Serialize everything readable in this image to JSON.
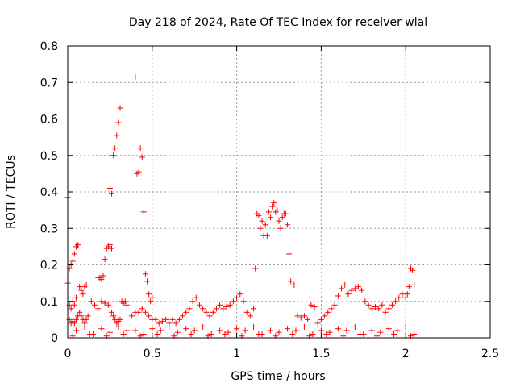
{
  "chart_data": {
    "type": "scatter",
    "title": "Day 218 of 2024, Rate Of TEC Index for receiver wlal",
    "xlabel": "GPS time / hours",
    "ylabel": "ROTI / TECUs",
    "xlim": [
      0,
      2.5
    ],
    "ylim": [
      0,
      0.8
    ],
    "xticks": [
      0,
      0.5,
      1,
      1.5,
      2,
      2.5
    ],
    "xtick_labels": [
      "0",
      "0.5",
      "1",
      "1.5",
      "2",
      "2.5"
    ],
    "yticks": [
      0,
      0.1,
      0.2,
      0.3,
      0.4,
      0.5,
      0.6,
      0.7,
      0.8
    ],
    "ytick_labels": [
      "0",
      "0.1",
      "0.2",
      "0.3",
      "0.4",
      "0.5",
      "0.6",
      "0.7",
      "0.8"
    ],
    "grid": true,
    "marker": "+",
    "marker_color": "#ff0000",
    "series": [
      {
        "x": [
          0.0,
          0.01,
          0.02,
          0.03,
          0.04,
          0.05,
          0.06,
          0.07,
          0.08,
          0.09,
          0.1,
          0.11,
          0.0,
          0.01,
          0.02,
          0.03,
          0.04,
          0.05,
          0.01,
          0.02,
          0.03,
          0.04,
          0.05,
          0.06,
          0.07,
          0.08,
          0.09,
          0.1,
          0.11,
          0.12,
          0.14,
          0.16,
          0.18,
          0.2,
          0.22,
          0.24,
          0.18,
          0.19,
          0.2,
          0.21,
          0.22,
          0.23,
          0.24,
          0.25,
          0.26,
          0.25,
          0.26,
          0.27,
          0.28,
          0.29,
          0.3,
          0.31,
          0.32,
          0.33,
          0.34,
          0.35,
          0.26,
          0.27,
          0.28,
          0.29,
          0.3,
          0.31,
          0.4,
          0.41,
          0.42,
          0.43,
          0.44,
          0.45,
          0.46,
          0.47,
          0.48,
          0.49,
          0.5,
          0.38,
          0.4,
          0.42,
          0.44,
          0.46,
          0.48,
          0.5,
          0.52,
          0.54,
          0.56,
          0.58,
          0.6,
          0.62,
          0.64,
          0.66,
          0.68,
          0.7,
          0.72,
          0.74,
          0.76,
          0.78,
          0.8,
          0.82,
          0.84,
          0.86,
          0.88,
          0.9,
          0.92,
          0.94,
          0.96,
          0.98,
          1.0,
          1.02,
          1.04,
          1.06,
          1.08,
          1.1,
          1.11,
          1.12,
          1.13,
          1.14,
          1.15,
          1.16,
          1.17,
          1.18,
          1.19,
          1.2,
          1.21,
          1.22,
          1.23,
          1.24,
          1.25,
          1.26,
          1.27,
          1.28,
          1.29,
          1.3,
          1.31,
          1.32,
          1.34,
          1.36,
          1.38,
          1.4,
          1.42,
          1.44,
          1.46,
          1.48,
          1.5,
          1.52,
          1.54,
          1.56,
          1.58,
          1.6,
          1.62,
          1.64,
          1.66,
          1.68,
          1.7,
          1.72,
          1.74,
          1.76,
          1.78,
          1.8,
          1.82,
          1.84,
          1.86,
          1.88,
          1.9,
          1.92,
          1.94,
          1.96,
          1.98,
          2.0,
          2.01,
          2.02,
          2.03,
          2.04,
          2.05,
          0.05,
          0.15,
          0.25,
          0.35,
          0.45,
          0.55,
          0.65,
          0.75,
          0.85,
          0.95,
          1.05,
          1.15,
          1.25,
          1.35,
          1.45,
          1.55,
          1.65,
          1.75,
          1.85,
          1.95,
          2.05,
          0.1,
          0.2,
          0.3,
          0.4,
          0.5,
          0.6,
          0.7,
          0.8,
          0.9,
          1.0,
          1.1,
          1.2,
          1.3,
          1.4,
          1.5,
          1.6,
          1.7,
          1.8,
          1.9,
          2.0,
          0.03,
          0.13,
          0.23,
          0.33,
          0.43,
          0.53,
          0.63,
          0.73,
          0.83,
          0.93,
          1.03,
          1.13,
          1.23,
          1.33,
          1.43,
          1.53,
          1.63,
          1.73,
          1.83,
          1.93,
          2.03
        ],
        "y": [
          0.385,
          0.19,
          0.2,
          0.21,
          0.23,
          0.25,
          0.255,
          0.14,
          0.13,
          0.12,
          0.14,
          0.145,
          0.15,
          0.09,
          0.08,
          0.1,
          0.09,
          0.11,
          0.05,
          0.04,
          0.045,
          0.04,
          0.05,
          0.06,
          0.07,
          0.06,
          0.05,
          0.04,
          0.05,
          0.06,
          0.1,
          0.09,
          0.08,
          0.1,
          0.095,
          0.09,
          0.165,
          0.165,
          0.16,
          0.17,
          0.215,
          0.245,
          0.25,
          0.255,
          0.245,
          0.41,
          0.395,
          0.5,
          0.52,
          0.555,
          0.59,
          0.63,
          0.1,
          0.095,
          0.1,
          0.09,
          0.07,
          0.06,
          0.05,
          0.04,
          0.045,
          0.05,
          0.715,
          0.45,
          0.455,
          0.52,
          0.495,
          0.345,
          0.175,
          0.155,
          0.12,
          0.1,
          0.11,
          0.06,
          0.07,
          0.07,
          0.08,
          0.07,
          0.06,
          0.05,
          0.05,
          0.04,
          0.045,
          0.05,
          0.04,
          0.05,
          0.04,
          0.05,
          0.06,
          0.07,
          0.08,
          0.1,
          0.11,
          0.09,
          0.08,
          0.07,
          0.06,
          0.07,
          0.08,
          0.09,
          0.08,
          0.085,
          0.09,
          0.1,
          0.11,
          0.12,
          0.1,
          0.07,
          0.06,
          0.08,
          0.19,
          0.34,
          0.335,
          0.3,
          0.32,
          0.28,
          0.31,
          0.28,
          0.345,
          0.33,
          0.36,
          0.37,
          0.345,
          0.35,
          0.32,
          0.3,
          0.33,
          0.34,
          0.34,
          0.31,
          0.23,
          0.155,
          0.145,
          0.06,
          0.055,
          0.06,
          0.05,
          0.09,
          0.085,
          0.04,
          0.05,
          0.06,
          0.07,
          0.08,
          0.09,
          0.115,
          0.135,
          0.145,
          0.12,
          0.13,
          0.135,
          0.14,
          0.13,
          0.1,
          0.09,
          0.08,
          0.085,
          0.08,
          0.09,
          0.07,
          0.08,
          0.09,
          0.1,
          0.11,
          0.12,
          0.11,
          0.12,
          0.14,
          0.19,
          0.185,
          0.145,
          0.02,
          0.01,
          0.015,
          0.02,
          0.01,
          0.02,
          0.015,
          0.02,
          0.01,
          0.015,
          0.02,
          0.01,
          0.015,
          0.02,
          0.01,
          0.015,
          0.02,
          0.01,
          0.015,
          0.02,
          0.01,
          0.03,
          0.025,
          0.03,
          0.02,
          0.025,
          0.03,
          0.025,
          0.03,
          0.02,
          0.025,
          0.03,
          0.02,
          0.025,
          0.03,
          0.02,
          0.025,
          0.03,
          0.02,
          0.025,
          0.03,
          0.005,
          0.01,
          0.005,
          0.01,
          0.005,
          0.01,
          0.005,
          0.01,
          0.005,
          0.01,
          0.005,
          0.01,
          0.005,
          0.01,
          0.005,
          0.01,
          0.005,
          0.01,
          0.005,
          0.01,
          0.005
        ]
      }
    ]
  }
}
